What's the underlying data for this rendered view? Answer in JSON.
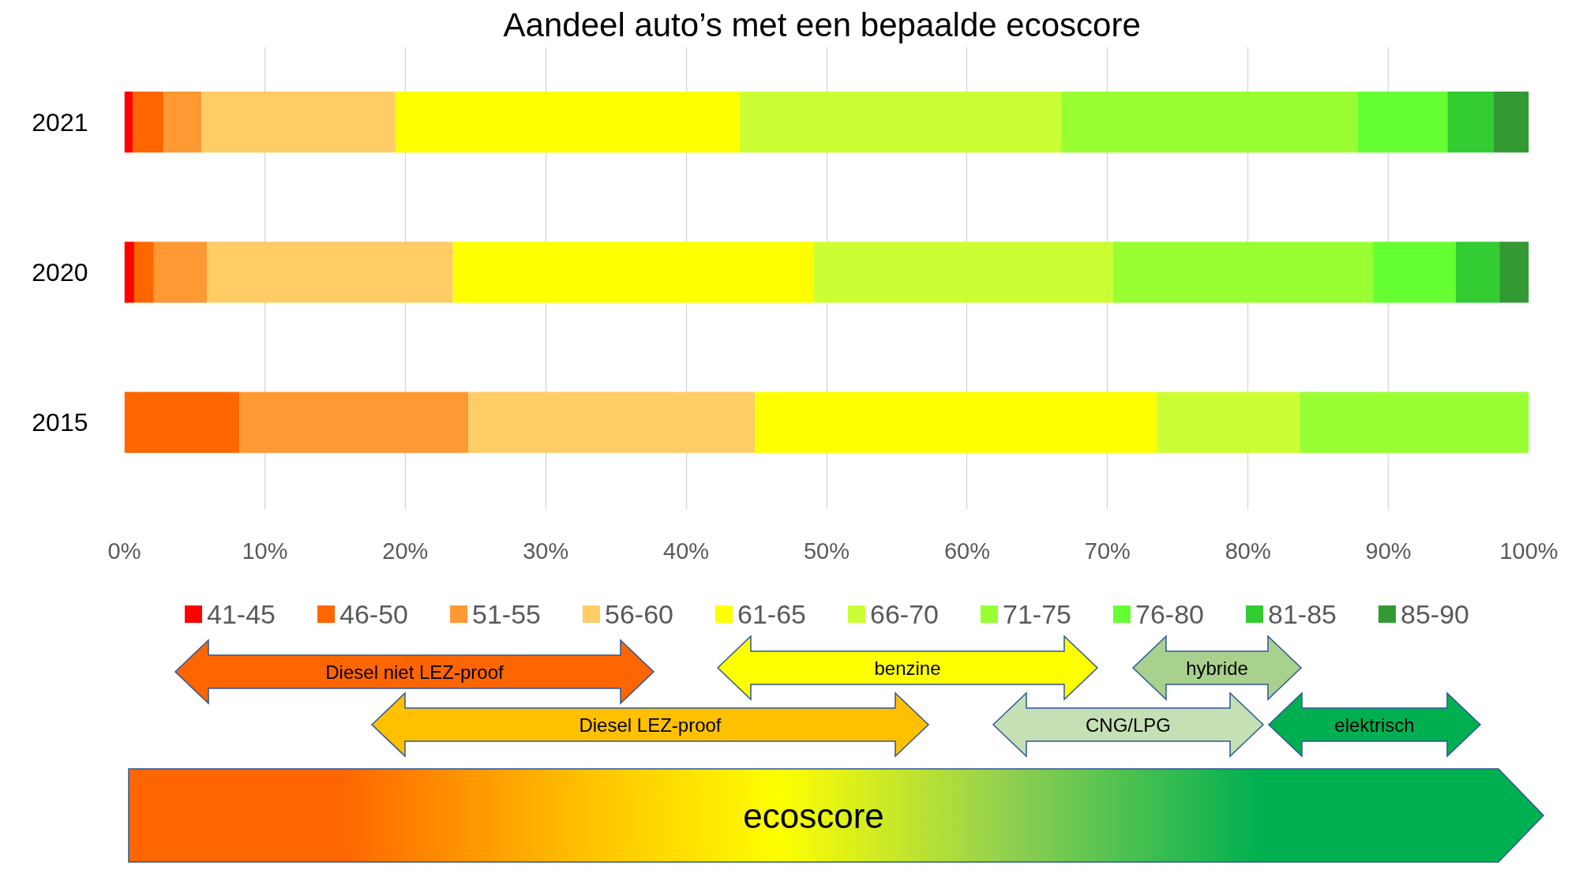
{
  "chart_data": {
    "type": "bar",
    "orientation": "horizontal",
    "stacked": true,
    "title": "Aandeel auto’s met een bepaalde  ecoscore",
    "categories": [
      "2021",
      "2020",
      "2015"
    ],
    "series": [
      {
        "name": "41-45",
        "color": "#ff0000",
        "values": [
          0.6,
          0.7,
          0
        ]
      },
      {
        "name": "46-50",
        "color": "#ff6600",
        "values": [
          2.2,
          1.4,
          8.2
        ]
      },
      {
        "name": "51-55",
        "color": "#ff9933",
        "values": [
          2.7,
          3.8,
          16.3
        ]
      },
      {
        "name": "56-60",
        "color": "#ffcc66",
        "values": [
          13.8,
          17.5,
          20.4
        ]
      },
      {
        "name": "61-65",
        "color": "#ffff00",
        "values": [
          24.5,
          25.7,
          28.6
        ]
      },
      {
        "name": "66-70",
        "color": "#ccff33",
        "values": [
          22.9,
          21.3,
          10.2
        ]
      },
      {
        "name": "71-75",
        "color": "#99ff33",
        "values": [
          21.1,
          18.5,
          16.3
        ]
      },
      {
        "name": "76-80",
        "color": "#66ff33",
        "values": [
          6.4,
          5.9,
          0
        ]
      },
      {
        "name": "81-85",
        "color": "#33cc33",
        "values": [
          3.3,
          3.1,
          0
        ]
      },
      {
        "name": "85-90",
        "color": "#339933",
        "values": [
          2.5,
          2.1,
          0
        ]
      }
    ],
    "xlim": [
      0,
      100
    ],
    "xticks": [
      {
        "value": 0,
        "label": "0%"
      },
      {
        "value": 10,
        "label": "10%"
      },
      {
        "value": 20,
        "label": "20%"
      },
      {
        "value": 30,
        "label": "30%"
      },
      {
        "value": 40,
        "label": "40%"
      },
      {
        "value": 50,
        "label": "50%"
      },
      {
        "value": 60,
        "label": "60%"
      },
      {
        "value": 70,
        "label": "70%"
      },
      {
        "value": 80,
        "label": "80%"
      },
      {
        "value": 90,
        "label": "90%"
      },
      {
        "value": 100,
        "label": "100%"
      }
    ],
    "grid": "x",
    "legend": "bottom",
    "annotations": [
      "Diesel niet LEZ-proof",
      "Diesel LEZ-proof",
      "benzine",
      "CNG/LPG",
      "hybride",
      "elektrisch",
      "ecoscore"
    ]
  }
}
